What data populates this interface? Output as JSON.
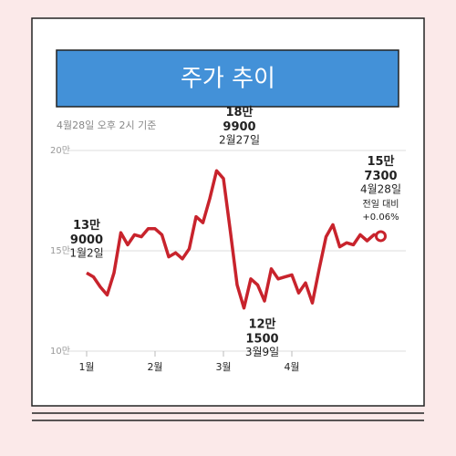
{
  "chart_data": {
    "type": "line",
    "title": "주가 추이",
    "subtitle": "4월28일 오후 2시 기준",
    "categories": [
      "1월",
      null,
      null,
      null,
      null,
      null,
      null,
      null,
      null,
      null,
      "2월",
      null,
      null,
      null,
      null,
      null,
      null,
      null,
      null,
      null,
      "3월",
      null,
      null,
      null,
      null,
      null,
      null,
      null,
      null,
      null,
      "4월",
      null,
      null,
      null,
      null,
      null,
      null,
      null,
      null,
      null,
      null,
      null,
      null,
      null
    ],
    "values": [
      139000,
      137000,
      132000,
      128000,
      139000,
      159000,
      153000,
      158000,
      157000,
      161000,
      161000,
      158000,
      147000,
      149000,
      146000,
      151000,
      167000,
      164000,
      176000,
      189900,
      186000,
      160000,
      133000,
      121500,
      136000,
      133000,
      125000,
      141000,
      136000,
      137000,
      138000,
      129000,
      134000,
      124000,
      141000,
      157000,
      163000,
      152000,
      154000,
      153000,
      158000,
      155000,
      158000,
      157300
    ],
    "value_labels": [
      "13만 9000",
      null,
      null,
      null,
      null,
      null,
      null,
      null,
      null,
      null,
      null,
      null,
      null,
      null,
      null,
      null,
      null,
      null,
      null,
      "18만 9900",
      null,
      null,
      null,
      "12만 1500",
      null,
      null,
      null,
      null,
      null,
      null,
      null,
      null,
      null,
      null,
      null,
      null,
      null,
      null,
      null,
      null,
      null,
      null,
      null,
      "15만 7300"
    ],
    "point_dates": [
      "1월2일",
      null,
      null,
      null,
      null,
      null,
      null,
      null,
      null,
      null,
      null,
      null,
      null,
      null,
      null,
      null,
      null,
      null,
      null,
      "2월27일",
      null,
      null,
      null,
      "3월9일",
      null,
      null,
      null,
      null,
      null,
      null,
      null,
      null,
      null,
      null,
      null,
      null,
      null,
      null,
      null,
      null,
      null,
      null,
      null,
      "4월28일"
    ],
    "annotation": [
      "전일 대비",
      "+0.06%"
    ],
    "color": "#c8232c",
    "ylim": [
      100000,
      200000
    ],
    "yticks": [
      {
        "value": 100000,
        "label": "10만"
      },
      {
        "value": 150000,
        "label": "15만"
      },
      {
        "value": 200000,
        "label": "20만"
      }
    ],
    "grid": true
  }
}
